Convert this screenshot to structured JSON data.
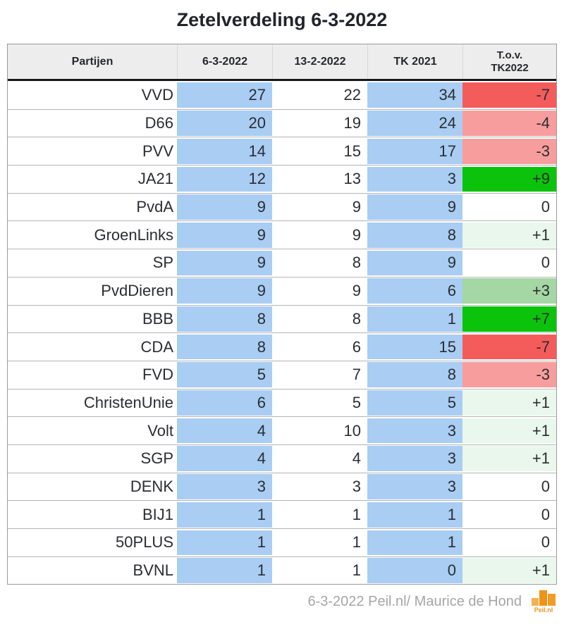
{
  "title": "Zetelverdeling 6-3-2022",
  "table": {
    "headers": [
      "Partijen",
      "6-3-2022",
      "13-2-2022",
      "TK 2021"
    ],
    "header_tov": {
      "line1": "T.o.v.",
      "line2": "TK2022"
    },
    "rows": [
      {
        "party": "VVD",
        "current": "27",
        "previous": "22",
        "tk2021": "34",
        "diff": "-7",
        "level": "neg2"
      },
      {
        "party": "D66",
        "current": "20",
        "previous": "19",
        "tk2021": "24",
        "diff": "-4",
        "level": "neg1"
      },
      {
        "party": "PVV",
        "current": "14",
        "previous": "15",
        "tk2021": "17",
        "diff": "-3",
        "level": "neg1"
      },
      {
        "party": "JA21",
        "current": "12",
        "previous": "13",
        "tk2021": "3",
        "diff": "+9",
        "level": "pos3"
      },
      {
        "party": "PvdA",
        "current": "9",
        "previous": "9",
        "tk2021": "9",
        "diff": "0",
        "level": "zero"
      },
      {
        "party": "GroenLinks",
        "current": "9",
        "previous": "9",
        "tk2021": "8",
        "diff": "+1",
        "level": "pos1"
      },
      {
        "party": "SP",
        "current": "9",
        "previous": "8",
        "tk2021": "9",
        "diff": "0",
        "level": "zero"
      },
      {
        "party": "PvdDieren",
        "current": "9",
        "previous": "9",
        "tk2021": "6",
        "diff": "+3",
        "level": "pos2"
      },
      {
        "party": "BBB",
        "current": "8",
        "previous": "8",
        "tk2021": "1",
        "diff": "+7",
        "level": "pos3"
      },
      {
        "party": "CDA",
        "current": "8",
        "previous": "6",
        "tk2021": "15",
        "diff": "-7",
        "level": "neg2"
      },
      {
        "party": "FVD",
        "current": "5",
        "previous": "7",
        "tk2021": "8",
        "diff": "-3",
        "level": "neg1"
      },
      {
        "party": "ChristenUnie",
        "current": "6",
        "previous": "5",
        "tk2021": "5",
        "diff": "+1",
        "level": "pos1"
      },
      {
        "party": "Volt",
        "current": "4",
        "previous": "10",
        "tk2021": "3",
        "diff": "+1",
        "level": "pos1"
      },
      {
        "party": "SGP",
        "current": "4",
        "previous": "4",
        "tk2021": "3",
        "diff": "+1",
        "level": "pos1"
      },
      {
        "party": "DENK",
        "current": "3",
        "previous": "3",
        "tk2021": "3",
        "diff": "0",
        "level": "zero"
      },
      {
        "party": "BIJ1",
        "current": "1",
        "previous": "1",
        "tk2021": "1",
        "diff": "0",
        "level": "zero"
      },
      {
        "party": "50PLUS",
        "current": "1",
        "previous": "1",
        "tk2021": "1",
        "diff": "0",
        "level": "zero"
      },
      {
        "party": "BVNL",
        "current": "1",
        "previous": "1",
        "tk2021": "0",
        "diff": "+1",
        "level": "pos1"
      }
    ]
  },
  "chart_data": {
    "type": "table",
    "title": "Zetelverdeling 6-3-2022",
    "categories": [
      "VVD",
      "D66",
      "PVV",
      "JA21",
      "PvdA",
      "GroenLinks",
      "SP",
      "PvdDieren",
      "BBB",
      "CDA",
      "FVD",
      "ChristenUnie",
      "Volt",
      "SGP",
      "DENK",
      "BIJ1",
      "50PLUS",
      "BVNL"
    ],
    "series": [
      {
        "name": "6-3-2022",
        "values": [
          27,
          20,
          14,
          12,
          9,
          9,
          9,
          9,
          8,
          8,
          5,
          6,
          4,
          4,
          3,
          1,
          1,
          1
        ]
      },
      {
        "name": "13-2-2022",
        "values": [
          22,
          19,
          15,
          13,
          9,
          9,
          8,
          9,
          8,
          6,
          7,
          5,
          10,
          4,
          3,
          1,
          1,
          1
        ]
      },
      {
        "name": "TK 2021",
        "values": [
          34,
          24,
          17,
          3,
          9,
          8,
          9,
          6,
          1,
          15,
          8,
          5,
          3,
          3,
          3,
          1,
          1,
          0
        ]
      },
      {
        "name": "T.o.v. TK2022",
        "values": [
          -7,
          -4,
          -3,
          9,
          0,
          1,
          0,
          3,
          7,
          -7,
          -3,
          1,
          1,
          1,
          0,
          0,
          0,
          1
        ]
      }
    ]
  },
  "footer": {
    "credit": "6-3-2022 Peil.nl/ Maurice de Hond",
    "logo_text": "Peil.nl"
  },
  "colors": {
    "cell-blue": "#a9cdf3",
    "diff-neg2": "#f45c5c",
    "diff-neg1": "#f89d9d",
    "diff-zero": "#ffffff",
    "diff-pos1": "#eaf7ed",
    "diff-pos2": "#a4d7a4",
    "diff-pos3": "#0cc30c",
    "header-bg": "#ededed",
    "row-line": "#b4b4b4",
    "table-border": "#9a9a9a",
    "footer-gray": "#a6a6a6",
    "logo-orange": "#ef9316",
    "logo-orange-mid": "#f09d24",
    "logo-orange-light": "#f4b052"
  }
}
